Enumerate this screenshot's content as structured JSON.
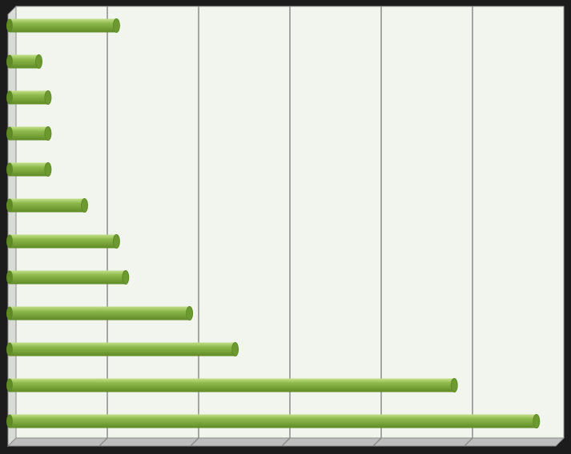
{
  "chart_data": {
    "type": "bar",
    "orientation": "horizontal",
    "style": "3d-cylinder",
    "categories": [
      "",
      "",
      "",
      "",
      "",
      "",
      "",
      "",
      "",
      "",
      "",
      ""
    ],
    "values": [
      11,
      2.5,
      3.5,
      3.5,
      3.5,
      7.5,
      11,
      12,
      19,
      24,
      48,
      57
    ],
    "xlim": [
      0,
      60
    ],
    "major_gridlines": [
      10,
      20,
      30,
      40,
      50
    ],
    "grid": true,
    "legend": "none",
    "title": "",
    "xlabel": "",
    "ylabel": "",
    "colors": {
      "bar": "#8cb84a",
      "bar_light": "#c4e08a",
      "bar_dark": "#5f8a26",
      "bar_cap": "#6d9a30",
      "plot_background": "#f1f5ed",
      "gridline": "#8c8c8c",
      "frame_background": "#1c1c1c",
      "floor": "#bdbdbd"
    }
  }
}
